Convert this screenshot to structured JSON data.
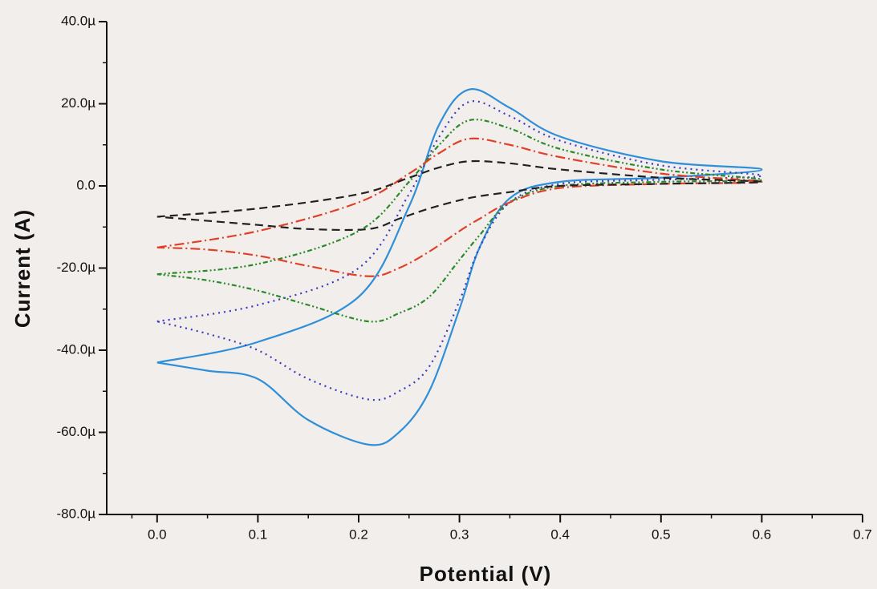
{
  "chart_data": {
    "type": "line",
    "x_label": "Potential (V)",
    "y_label": "Current (A)",
    "x": [
      0,
      0.1,
      0.2,
      0.25,
      0.28,
      0.31,
      0.35,
      0.4,
      0.5,
      0.6,
      0.5,
      0.4,
      0.35,
      0.32,
      0.3,
      0.27,
      0.24,
      0.21,
      0.15,
      0.1,
      0.05,
      0
    ],
    "series": [
      {
        "color": "#2f8fd8",
        "dash": "none",
        "values": [
          -4.3e-05,
          -3.8e-05,
          -2.7e-05,
          -5e-06,
          1.5e-05,
          2.35e-05,
          1.9e-05,
          1.2e-05,
          6e-06,
          4e-06,
          2e-06,
          1e-06,
          -3e-06,
          -1.5e-05,
          -3e-05,
          -5e-05,
          -6e-05,
          -6.3e-05,
          -5.7e-05,
          -4.7e-05,
          -4.5e-05,
          -4.3e-05
        ]
      },
      {
        "color": "#3a3ac0",
        "dash": "2,5",
        "values": [
          -3.3e-05,
          -2.9e-05,
          -2e-05,
          -2e-06,
          1.2e-05,
          2.05e-05,
          1.7e-05,
          1.1e-05,
          5e-06,
          2.5e-06,
          1.5e-06,
          5e-07,
          -4e-06,
          -1.5e-05,
          -2.8e-05,
          -4.4e-05,
          -5e-05,
          -5.2e-05,
          -4.7e-05,
          -4e-05,
          -3.6e-05,
          -3.3e-05
        ]
      },
      {
        "color": "#2a8a2a",
        "dash": "6,3,2,3,2,3",
        "values": [
          -2.15e-05,
          -1.9e-05,
          -1.1e-05,
          1e-06,
          1e-05,
          1.6e-05,
          1.4e-05,
          9e-06,
          4e-06,
          1.5e-06,
          1e-06,
          0,
          -4e-06,
          -1.2e-05,
          -1.8e-05,
          -2.7e-05,
          -3.1e-05,
          -3.3e-05,
          -2.9e-05,
          -2.55e-05,
          -2.3e-05,
          -2.15e-05
        ]
      },
      {
        "color": "#e0402a",
        "dash": "12,4,2,4",
        "values": [
          -1.5e-05,
          -1.1e-05,
          -4e-06,
          3e-06,
          8e-06,
          1.15e-05,
          1e-05,
          7e-06,
          3e-06,
          1e-06,
          5e-07,
          -5e-07,
          -4e-06,
          -8e-06,
          -1.1e-05,
          -1.6e-05,
          -2e-05,
          -2.2e-05,
          -1.95e-05,
          -1.7e-05,
          -1.55e-05,
          -1.5e-05
        ]
      },
      {
        "color": "#222222",
        "dash": "10,6",
        "values": [
          -7.5e-06,
          -5.5e-06,
          -2e-06,
          2e-06,
          4.5e-06,
          6e-06,
          5.5e-06,
          4e-06,
          2e-06,
          1e-06,
          5e-07,
          0,
          -1.5e-06,
          -2.5e-06,
          -3.5e-06,
          -5.5e-06,
          -8e-06,
          -1.05e-05,
          -1.05e-05,
          -9.5e-06,
          -8.5e-06,
          -7.5e-06
        ]
      }
    ],
    "xlim": [
      -0.05,
      0.7
    ],
    "ylim": [
      -8e-05,
      4e-05
    ],
    "xticks": [
      {
        "value": 0,
        "label": "0.0"
      },
      {
        "value": 0.1,
        "label": "0.1"
      },
      {
        "value": 0.2,
        "label": "0.2"
      },
      {
        "value": 0.3,
        "label": "0.3"
      },
      {
        "value": 0.4,
        "label": "0.4"
      },
      {
        "value": 0.5,
        "label": "0.5"
      },
      {
        "value": 0.6,
        "label": "0.6"
      },
      {
        "value": 0.7,
        "label": "0.7"
      }
    ],
    "yticks": [
      {
        "value": -8e-05,
        "label": "-80.0µ"
      },
      {
        "value": -6e-05,
        "label": "-60.0µ"
      },
      {
        "value": -4e-05,
        "label": "-40.0µ"
      },
      {
        "value": -2e-05,
        "label": "-20.0µ"
      },
      {
        "value": 0,
        "label": "0.0"
      },
      {
        "value": 2e-05,
        "label": "20.0µ"
      },
      {
        "value": 4e-05,
        "label": "40.0µ"
      }
    ],
    "grid": false
  }
}
